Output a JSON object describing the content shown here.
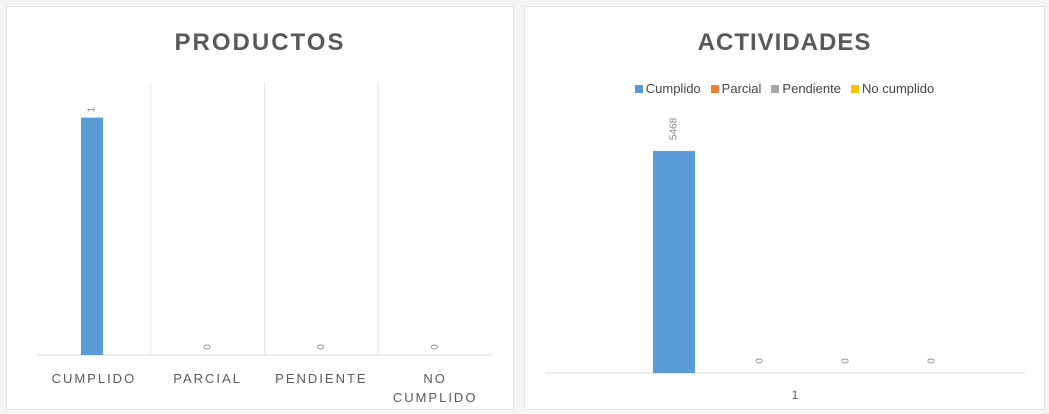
{
  "colors": {
    "cumplido": "#5b9bd5",
    "parcial": "#ed7d31",
    "pendiente": "#a5a5a5",
    "no_cumplido": "#ffc000",
    "axis_text": "#595959",
    "grid": "#e6e6e6"
  },
  "chart_data": [
    {
      "type": "bar",
      "title": "PRODUCTOS",
      "categories": [
        "CUMPLIDO",
        "PARCIAL",
        "PENDIENTE",
        "NO CUMPLIDO"
      ],
      "values": [
        1,
        0,
        0,
        0
      ],
      "data_labels": [
        "1",
        "0",
        "0",
        "0"
      ],
      "ylim": [
        0,
        1.15
      ],
      "grid": "vertical separators",
      "legend": "none"
    },
    {
      "type": "bar",
      "title": "ACTIVIDADES",
      "categories": [
        "1"
      ],
      "series": [
        {
          "name": "Cumplido",
          "values": [
            5468
          ]
        },
        {
          "name": "Parcial",
          "values": [
            0
          ]
        },
        {
          "name": "Pendiente",
          "values": [
            0
          ]
        },
        {
          "name": "No cumplido",
          "values": [
            0
          ]
        }
      ],
      "data_labels": [
        "5468",
        "0",
        "0",
        "0"
      ],
      "ylim": [
        0,
        6550
      ],
      "grid": "off",
      "legend": "top"
    }
  ]
}
